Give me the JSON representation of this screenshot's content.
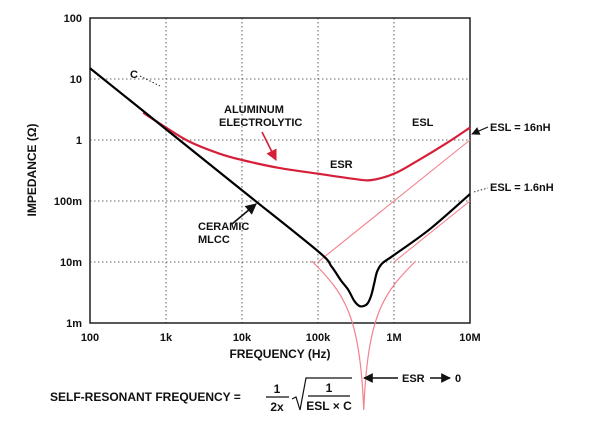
{
  "chart_data": {
    "type": "line",
    "xlabel": "FREQUENCY (Hz)",
    "ylabel": "IMPEDANCE (Ω)",
    "x_scale": "log",
    "y_scale": "log",
    "xlim": [
      100,
      10000000
    ],
    "ylim": [
      0.001,
      100
    ],
    "grid": true,
    "x_ticks": [
      {
        "value": 100,
        "label": "100"
      },
      {
        "value": 1000,
        "label": "1k"
      },
      {
        "value": 10000,
        "label": "10k"
      },
      {
        "value": 100000,
        "label": "100k"
      },
      {
        "value": 1000000,
        "label": "1M"
      },
      {
        "value": 10000000,
        "label": "10M"
      }
    ],
    "y_ticks": [
      {
        "value": 100,
        "label": "100"
      },
      {
        "value": 10,
        "label": "10"
      },
      {
        "value": 1,
        "label": "1"
      },
      {
        "value": 0.1,
        "label": "100m"
      },
      {
        "value": 0.01,
        "label": "10m"
      },
      {
        "value": 0.001,
        "label": "1m"
      }
    ],
    "series": [
      {
        "color": "#000000",
        "points": [
          [
            100,
            15
          ],
          [
            1000,
            1.5
          ],
          [
            10000,
            0.15
          ],
          [
            100000,
            0.015
          ],
          [
            150000,
            0.0085
          ],
          [
            200000,
            0.005
          ],
          [
            250000,
            0.0035
          ],
          [
            300000,
            0.0023
          ],
          [
            350000,
            0.0019
          ],
          [
            400000,
            0.0019
          ],
          [
            450000,
            0.0021
          ],
          [
            500000,
            0.0028
          ],
          [
            550000,
            0.0045
          ],
          [
            600000,
            0.007
          ],
          [
            700000,
            0.0095
          ],
          [
            1000000,
            0.013
          ],
          [
            3000000,
            0.035
          ],
          [
            10000000,
            0.13
          ]
        ]
      },
      {
        "color": "#d6203a",
        "points": [
          [
            500,
            2.8
          ],
          [
            1000,
            1.6
          ],
          [
            2000,
            0.95
          ],
          [
            5000,
            0.6
          ],
          [
            10000,
            0.47
          ],
          [
            30000,
            0.35
          ],
          [
            100000,
            0.28
          ],
          [
            300000,
            0.23
          ],
          [
            500000,
            0.22
          ],
          [
            1000000,
            0.28
          ],
          [
            2000000,
            0.45
          ],
          [
            5000000,
            0.9
          ],
          [
            10000000,
            1.6
          ]
        ]
      }
    ],
    "lines": [
      {
        "color": "#f4808c",
        "points": [
          [
            100000,
            0.01
          ],
          [
            10000000,
            1.0
          ]
        ],
        "label": "ESL = 16nH"
      },
      {
        "color": "#f4808c",
        "points": [
          [
            1000000,
            0.01
          ],
          [
            10000000,
            0.1
          ]
        ],
        "label": "ESL = 1.6nH"
      }
    ],
    "resonance_curve": {
      "color": "#f4808c",
      "center": 400000
    },
    "annotations": {
      "c": "C",
      "aluminum_line1": "ALUMINUM",
      "aluminum_line2": "ELECTROLYTIC",
      "esl": "ESL",
      "esr": "ESR",
      "ceramic_line1": "CERAMIC",
      "ceramic_line2": "MLCC",
      "esl_16": "ESL = 16nH",
      "esl_1_6": "ESL = 1.6nH",
      "esr_zero": "ESR",
      "esr_zero_value": "0"
    },
    "equation": {
      "prefix": "SELF-RESONANT FREQUENCY =",
      "frac_num": "1",
      "frac_den": "2x",
      "sqrt_num": "1",
      "sqrt_den": "ESL × C"
    },
    "colors": {
      "ceramic": "#000000",
      "electrolytic": "#d6203a",
      "asymptote": "#f4808c"
    }
  }
}
